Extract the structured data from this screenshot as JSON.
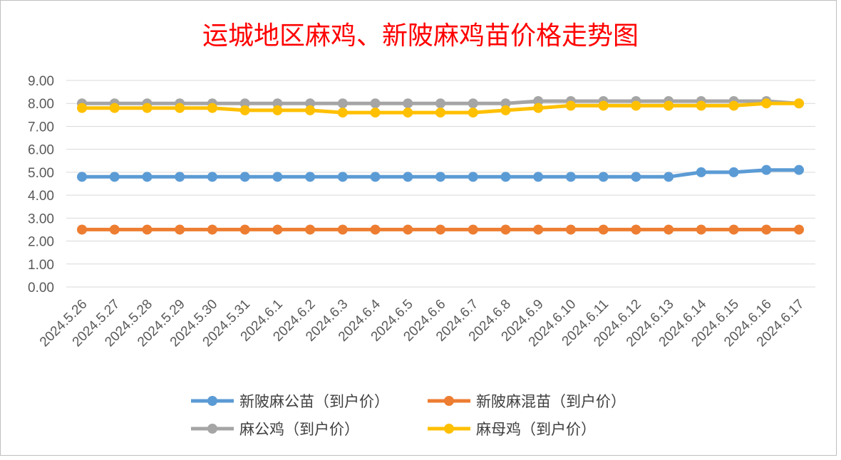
{
  "chart_data": {
    "type": "line",
    "title": "运城地区麻鸡、新陂麻鸡苗价格走势图",
    "xlabel": "",
    "ylabel": "",
    "ylim": [
      0,
      9
    ],
    "yticks": [
      "0.00",
      "1.00",
      "2.00",
      "3.00",
      "4.00",
      "5.00",
      "6.00",
      "7.00",
      "8.00",
      "9.00"
    ],
    "grid": true,
    "legend_position": "bottom",
    "categories": [
      "2024.5.26",
      "2024.5.27",
      "2024.5.28",
      "2024.5.29",
      "2024.5.30",
      "2024.5.31",
      "2024.6.1",
      "2024.6.2",
      "2024.6.3",
      "2024.6.4",
      "2024.6.5",
      "2024.6.6",
      "2024.6.7",
      "2024.6.8",
      "2024.6.9",
      "2024.6.10",
      "2024.6.11",
      "2024.6.12",
      "2024.6.13",
      "2024.6.14",
      "2024.6.15",
      "2024.6.16",
      "2024.6.17"
    ],
    "series": [
      {
        "name": "新陂麻公苗（到户价）",
        "color": "#5b9bd5",
        "values": [
          4.8,
          4.8,
          4.8,
          4.8,
          4.8,
          4.8,
          4.8,
          4.8,
          4.8,
          4.8,
          4.8,
          4.8,
          4.8,
          4.8,
          4.8,
          4.8,
          4.8,
          4.8,
          4.8,
          5.0,
          5.0,
          5.1,
          5.1
        ]
      },
      {
        "name": "新陂麻混苗（到户价）",
        "color": "#ed7d31",
        "values": [
          2.5,
          2.5,
          2.5,
          2.5,
          2.5,
          2.5,
          2.5,
          2.5,
          2.5,
          2.5,
          2.5,
          2.5,
          2.5,
          2.5,
          2.5,
          2.5,
          2.5,
          2.5,
          2.5,
          2.5,
          2.5,
          2.5,
          2.5
        ]
      },
      {
        "name": "麻公鸡（到户价）",
        "color": "#a5a5a5",
        "values": [
          8.0,
          8.0,
          8.0,
          8.0,
          8.0,
          8.0,
          8.0,
          8.0,
          8.0,
          8.0,
          8.0,
          8.0,
          8.0,
          8.0,
          8.1,
          8.1,
          8.1,
          8.1,
          8.1,
          8.1,
          8.1,
          8.1,
          8.0
        ]
      },
      {
        "name": "麻母鸡（到户价）",
        "color": "#ffc000",
        "values": [
          7.8,
          7.8,
          7.8,
          7.8,
          7.8,
          7.7,
          7.7,
          7.7,
          7.6,
          7.6,
          7.6,
          7.6,
          7.6,
          7.7,
          7.8,
          7.9,
          7.9,
          7.9,
          7.9,
          7.9,
          7.9,
          8.0,
          8.0
        ]
      }
    ]
  }
}
